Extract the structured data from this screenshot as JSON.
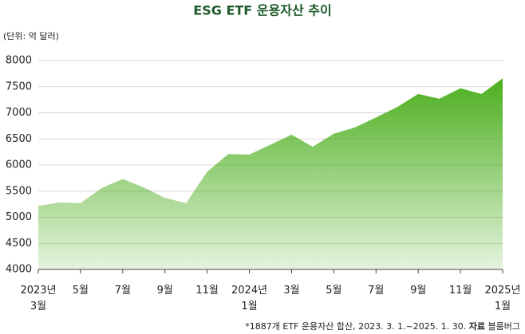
{
  "chart_data": {
    "type": "area",
    "title": "ESG ETF 운용자산 추이",
    "unit": "(단위: 억 달러)",
    "categories": [
      "2023년\n3월",
      null,
      "5월",
      null,
      "7월",
      null,
      "9월",
      null,
      "11월",
      null,
      "2024년\n1월",
      null,
      "3월",
      null,
      "5월",
      null,
      "7월",
      null,
      "9월",
      null,
      "11월",
      null,
      "2025년\n1월"
    ],
    "values": [
      5220,
      5280,
      5270,
      5560,
      5730,
      5570,
      5370,
      5270,
      5870,
      6210,
      6200,
      6390,
      6580,
      6350,
      6600,
      6720,
      6910,
      7110,
      7360,
      7270,
      7470,
      7360,
      7660
    ],
    "color": "#4caf1e",
    "ylim": [
      4000,
      8000
    ],
    "yticks": [
      4000,
      4500,
      5000,
      5500,
      6000,
      6500,
      7000,
      7500,
      8000
    ],
    "grid": true,
    "footnote": "*1887개 ETF 운용자산 합산, 2023. 3. 1.~2025. 1. 30.",
    "source_label": "자료",
    "source": "블룸버그"
  }
}
